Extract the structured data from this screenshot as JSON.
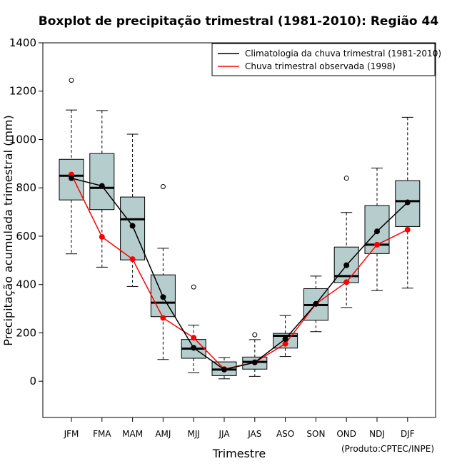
{
  "chart_data": {
    "type": "boxplot",
    "title": "Boxplot de precipitação trimestral (1981-2010): Região 44",
    "xlabel": "Trimestre",
    "ylabel": "Precipitação acumulada trimestral (mm)",
    "credit": "(Produto:CPTEC/INPE)",
    "ylim": [
      -150,
      1400
    ],
    "yticks": [
      0,
      200,
      400,
      600,
      800,
      1000,
      1200,
      1400
    ],
    "ytick_labels": [
      "0",
      "200",
      "400",
      "600",
      "800",
      "1000",
      "1200",
      "1400"
    ],
    "categories": [
      "JFM",
      "FMA",
      "MAM",
      "AMJ",
      "MJJ",
      "JJA",
      "JAS",
      "ASO",
      "SON",
      "OND",
      "NDJ",
      "DJF"
    ],
    "boxes": [
      {
        "min": 527,
        "q1": 750,
        "median": 850,
        "q3": 918,
        "max": 1122,
        "outliers": [
          1245
        ]
      },
      {
        "min": 472,
        "q1": 710,
        "median": 800,
        "q3": 942,
        "max": 1120,
        "outliers": []
      },
      {
        "min": 392,
        "q1": 502,
        "median": 670,
        "q3": 762,
        "max": 1022,
        "outliers": []
      },
      {
        "min": 90,
        "q1": 267,
        "median": 325,
        "q3": 440,
        "max": 550,
        "outliers": [
          805
        ]
      },
      {
        "min": 35,
        "q1": 95,
        "median": 135,
        "q3": 173,
        "max": 232,
        "outliers": [
          390
        ]
      },
      {
        "min": 10,
        "q1": 23,
        "median": 48,
        "q3": 80,
        "max": 98,
        "outliers": []
      },
      {
        "min": 20,
        "q1": 50,
        "median": 80,
        "q3": 100,
        "max": 172,
        "outliers": [
          192
        ]
      },
      {
        "min": 102,
        "q1": 137,
        "median": 188,
        "q3": 198,
        "max": 272,
        "outliers": []
      },
      {
        "min": 205,
        "q1": 252,
        "median": 315,
        "q3": 383,
        "max": 435,
        "outliers": []
      },
      {
        "min": 305,
        "q1": 408,
        "median": 435,
        "q3": 555,
        "max": 698,
        "outliers": [
          840
        ]
      },
      {
        "min": 375,
        "q1": 528,
        "median": 565,
        "q3": 727,
        "max": 882,
        "outliers": []
      },
      {
        "min": 385,
        "q1": 640,
        "median": 745,
        "q3": 830,
        "max": 1092,
        "outliers": []
      }
    ],
    "series": [
      {
        "name": "Climatologia da chuva trimestral (1981-2010)",
        "color": "#000000",
        "values": [
          840,
          808,
          643,
          348,
          138,
          48,
          78,
          175,
          320,
          480,
          620,
          740
        ]
      },
      {
        "name": "Chuva trimestral observada (1998)",
        "color": "#ff0000",
        "values": [
          855,
          597,
          505,
          262,
          180,
          50,
          78,
          155,
          320,
          410,
          565,
          627
        ]
      }
    ],
    "legend_position": "top-right",
    "colors": {
      "box_fill": "#b6cdcd",
      "box_stroke": "#000000",
      "outlier": "#000000"
    }
  }
}
